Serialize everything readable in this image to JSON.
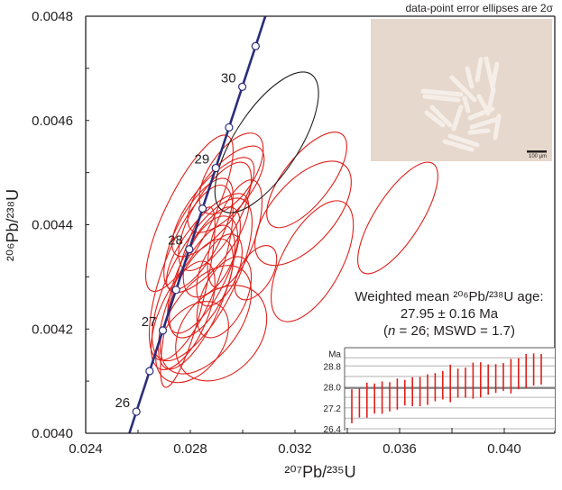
{
  "note": "data-point error ellipses are 2σ",
  "photo": {
    "scale_bar": "100 µm"
  },
  "stats": {
    "line1": "Weighted mean ²⁰⁶Pb/²³⁸U age:",
    "line2": "27.95 ± 0.16 Ma",
    "line3_pre": "(",
    "line3_n": "n",
    "line3_post": " = 26; MSWD = 1.7)"
  },
  "colors": {
    "concordia": "#2a2e7a",
    "ellipse": "#e0201a",
    "excluded": "#231f20",
    "bar": "#e0201a"
  },
  "chart_data": [
    {
      "type": "scatter",
      "subtype": "concordia error-ellipse plot",
      "xlabel": "²⁰⁷Pb/²³⁵U",
      "ylabel": "²⁰⁶Pb/²³⁸U",
      "xlim": [
        0.024,
        0.042
      ],
      "ylim": [
        0.004,
        0.0048
      ],
      "xticks": [
        "0.024",
        "0.028",
        "0.032",
        "0.036",
        "0.040"
      ],
      "yticks": [
        "0.0040",
        "0.0042",
        "0.0044",
        "0.0046",
        "0.0048"
      ],
      "concordia_ages_ma": [
        26,
        26.5,
        27,
        27.5,
        28,
        28.5,
        29,
        29.5,
        30,
        30.5
      ],
      "concordia_labels": [
        "26",
        "27",
        "28",
        "29",
        "30"
      ],
      "ellipses_excluded": [
        {
          "x": 0.03092,
          "y": 0.004558,
          "sx": 0.00198,
          "sy": 0.000135,
          "rho": 0.7
        }
      ],
      "ellipses": [
        {
          "x": 0.03593,
          "y": 0.004413,
          "sx": 0.00153,
          "sy": 0.000107,
          "rho": 0.75
        },
        {
          "x": 0.03245,
          "y": 0.004486,
          "sx": 0.00153,
          "sy": 9.16e-05,
          "rho": 0.7
        },
        {
          "x": 0.03231,
          "y": 0.004422,
          "sx": 0.00184,
          "sy": 0.0001,
          "rho": 0.6
        },
        {
          "x": 0.03266,
          "y": 0.00433,
          "sx": 0.00157,
          "sy": 0.000116,
          "rho": 0.6
        },
        {
          "x": 0.0305,
          "y": 0.004308,
          "sx": 0.0008,
          "sy": 5.2e-05,
          "rho": 0.5
        },
        {
          "x": 0.027965,
          "y": 0.004422,
          "sx": 0.00167,
          "sy": 0.00015,
          "rho": 0.8
        },
        {
          "x": 0.02803,
          "y": 0.004308,
          "sx": 0.0016,
          "sy": 0.000168,
          "rho": 0.7
        },
        {
          "x": 0.02918,
          "y": 0.004192,
          "sx": 0.00174,
          "sy": 9.16e-05,
          "rho": 0.3
        },
        {
          "x": 0.029565,
          "y": 0.004498,
          "sx": 0.00122,
          "sy": 7.78e-05,
          "rho": 0.6
        },
        {
          "x": 0.02936,
          "y": 0.004468,
          "sx": 0.00146,
          "sy": 8.3e-05,
          "rho": 0.7
        },
        {
          "x": 0.02894,
          "y": 0.004416,
          "sx": 0.00139,
          "sy": 0.000104,
          "rho": 0.7
        },
        {
          "x": 0.02866,
          "y": 0.004365,
          "sx": 0.00157,
          "sy": 9.5e-05,
          "rho": 0.75
        },
        {
          "x": 0.02852,
          "y": 0.004313,
          "sx": 0.00139,
          "sy": 0.000121,
          "rho": 0.7
        },
        {
          "x": 0.02842,
          "y": 0.004278,
          "sx": 0.00122,
          "sy": 9.5e-05,
          "rho": 0.6
        },
        {
          "x": 0.02877,
          "y": 0.004339,
          "sx": 0.00104,
          "sy": 7.78e-05,
          "rho": 0.5
        },
        {
          "x": 0.02824,
          "y": 0.004261,
          "sx": 0.00146,
          "sy": 0.000138,
          "rho": 0.7
        },
        {
          "x": 0.02772,
          "y": 0.004226,
          "sx": 0.00122,
          "sy": 0.000104,
          "rho": 0.6
        },
        {
          "x": 0.02859,
          "y": 0.004218,
          "sx": 0.00174,
          "sy": 0.000104,
          "rho": 0.5
        },
        {
          "x": 0.02807,
          "y": 0.004175,
          "sx": 0.00139,
          "sy": 7.78e-05,
          "rho": 0.4
        },
        {
          "x": 0.0279,
          "y": 0.004261,
          "sx": 0.00104,
          "sy": 0.000173,
          "rho": 0.8
        },
        {
          "x": 0.02911,
          "y": 0.004313,
          "sx": 0.00087,
          "sy": 6.9e-05,
          "rho": 0.5
        },
        {
          "x": 0.02831,
          "y": 0.004382,
          "sx": 0.00132,
          "sy": 0.000107,
          "rho": 0.7
        },
        {
          "x": 0.02929,
          "y": 0.004261,
          "sx": 0.00104,
          "sy": 7.78e-05,
          "rho": 0.5
        },
        {
          "x": 0.02887,
          "y": 0.004434,
          "sx": 0.00157,
          "sy": 9.5e-05,
          "rho": 0.75
        },
        {
          "x": 0.02845,
          "y": 0.004295,
          "sx": 0.00191,
          "sy": 0.000156,
          "rho": 0.7
        },
        {
          "x": 0.0297,
          "y": 0.004382,
          "sx": 0.00104,
          "sy": 0.000104,
          "rho": 0.6
        }
      ]
    },
    {
      "type": "bar",
      "subtype": "ranked age error bars",
      "ylabel": "Ma",
      "ylim": [
        26.33,
        29.5
      ],
      "yticks": [
        "28.8",
        "28.0",
        "27.2",
        "26.4"
      ],
      "mean": 27.95,
      "bars_low": [
        26.61,
        26.83,
        26.82,
        26.98,
        26.97,
        27.06,
        27.13,
        27.29,
        27.26,
        27.26,
        27.31,
        27.45,
        27.52,
        27.41,
        27.59,
        27.59,
        27.55,
        27.6,
        27.7,
        27.77,
        27.85,
        27.75,
        27.91,
        27.95,
        28.05,
        28.09
      ],
      "bars_high": [
        27.91,
        27.93,
        28.16,
        28.13,
        28.21,
        28.18,
        28.32,
        28.27,
        28.37,
        28.38,
        28.48,
        28.53,
        28.61,
        28.85,
        28.7,
        28.74,
        28.93,
        28.94,
        28.86,
        28.87,
        28.91,
        29.07,
        29.1,
        29.26,
        29.28,
        29.26
      ]
    }
  ]
}
